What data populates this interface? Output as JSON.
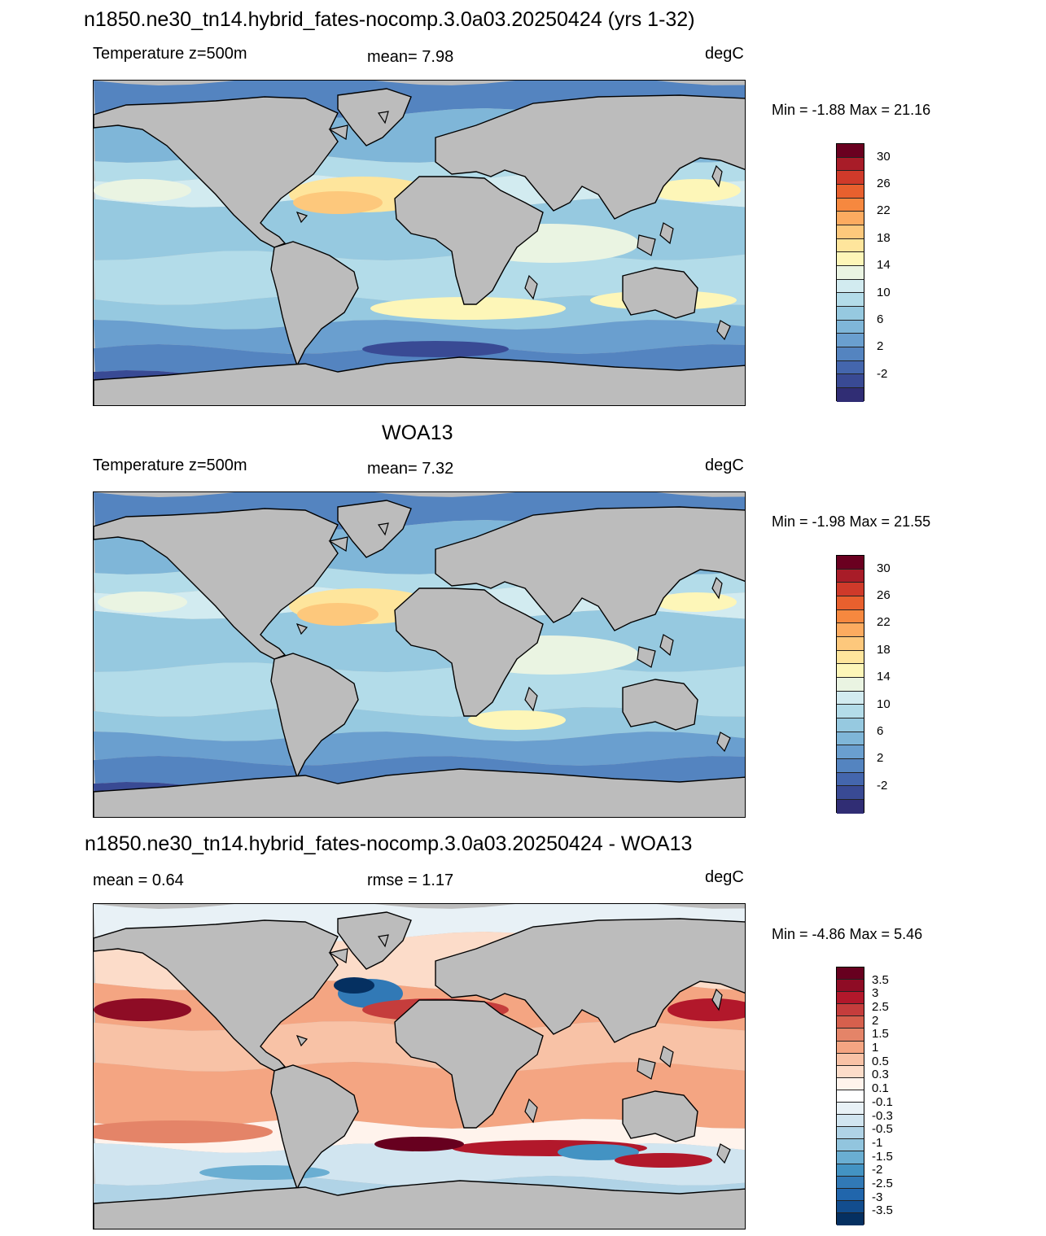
{
  "panels": [
    {
      "title": "n1850.ne30_tn14.hybrid_fates-nocomp.3.0a03.20250424 (yrs 1-32)",
      "left_label": "Temperature z=500m",
      "center_label": "mean=   7.98",
      "units": "degC",
      "minmax": "Min =  -1.88 Max =  21.16"
    },
    {
      "title": "WOA13",
      "left_label": "Temperature z=500m",
      "center_label": "mean=   7.32",
      "units": "degC",
      "minmax": "Min =  -1.98 Max =  21.55"
    },
    {
      "title": "n1850.ne30_tn14.hybrid_fates-nocomp.3.0a03.20250424 - WOA13",
      "left_label": "mean =   0.64",
      "center_label": "rmse =   1.17",
      "units": "degC",
      "minmax": "Min =  -4.86 Max =   5.46"
    }
  ],
  "temp_colorbar": {
    "tick_labels": [
      "30",
      "26",
      "22",
      "18",
      "14",
      "10",
      "6",
      "2",
      "-2"
    ],
    "colors": [
      "#6a0020",
      "#a81c28",
      "#cf3a2a",
      "#e8602e",
      "#f6883f",
      "#fcab60",
      "#fdc87c",
      "#fee59c",
      "#fdf6b8",
      "#eaf4e2",
      "#d2ebf0",
      "#b3dce9",
      "#96c9e0",
      "#7fb6d8",
      "#6a9fcf",
      "#5484c0",
      "#4466ad",
      "#394a94",
      "#302d74"
    ]
  },
  "diff_colorbar": {
    "tick_labels": [
      "3.5",
      "3",
      "2.5",
      "2",
      "1.5",
      "1",
      "0.5",
      "0.3",
      "0.1",
      "-0.1",
      "-0.3",
      "-0.5",
      "-1",
      "-1.5",
      "-2",
      "-2.5",
      "-3",
      "-3.5"
    ],
    "colors": [
      "#67001f",
      "#8e0c25",
      "#b2182b",
      "#c53d3c",
      "#d6604d",
      "#e48468",
      "#f4a582",
      "#f8c2a6",
      "#fcdcc9",
      "#fff3ec",
      "#ffffff",
      "#e8f1f6",
      "#d1e5f0",
      "#b0d3e6",
      "#92c5de",
      "#6aaed2",
      "#4393c3",
      "#3179b6",
      "#2166ac",
      "#124d8e",
      "#053061"
    ]
  }
}
